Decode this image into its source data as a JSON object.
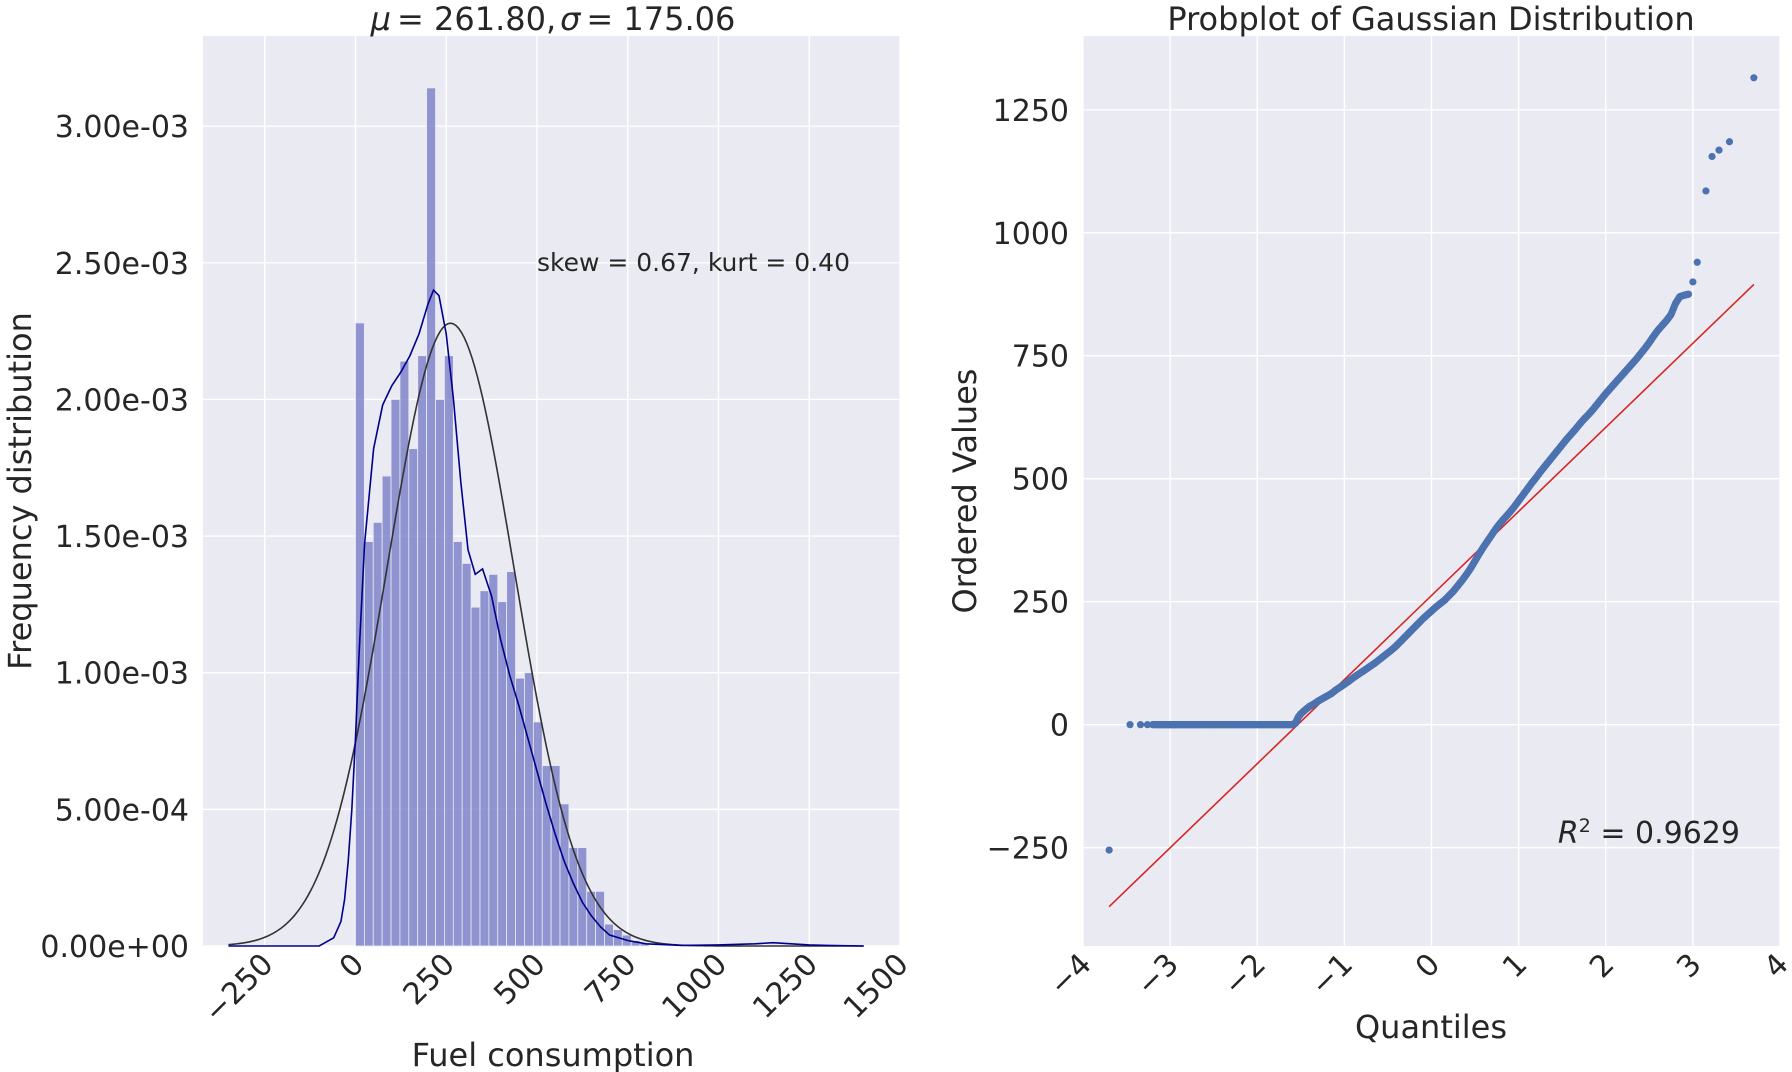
{
  "chart_data": [
    {
      "type": "bar",
      "title": "μ = 261.80, σ = 175.06",
      "title_parts": {
        "mu_symbol": "μ",
        "mu_value": "= 261.80,",
        "sigma_symbol": "σ",
        "sigma_value": "= 175.06"
      },
      "xlabel": "Fuel consumption",
      "ylabel": "Frequency distribution",
      "xlim": [
        -420,
        1500
      ],
      "ylim": [
        0,
        0.00333
      ],
      "x_tick_values": [
        -250,
        0,
        250,
        500,
        750,
        1000,
        1250,
        1500
      ],
      "x_tick_labels": [
        "−250",
        "0",
        "250",
        "500",
        "750",
        "1000",
        "1250",
        "1500"
      ],
      "y_tick_values": [
        0,
        0.0005,
        0.001,
        0.0015,
        0.002,
        0.0025,
        0.003
      ],
      "y_tick_labels": [
        "0.00e+00",
        "5.00e-04",
        "1.00e-03",
        "1.50e-03",
        "2.00e-03",
        "2.50e-03",
        "3.00e-03"
      ],
      "grid": true,
      "bin_start": 0,
      "bin_width": 24.5,
      "bar_color": "#7075c4",
      "values": [
        0.00228,
        0.00148,
        0.00155,
        0.00172,
        0.002,
        0.00214,
        0.00182,
        0.00216,
        0.00314,
        0.002,
        0.00216,
        0.00148,
        0.0014,
        0.00124,
        0.0013,
        0.00136,
        0.00126,
        0.00137,
        0.00098,
        0.001,
        0.00082,
        0.00066,
        0.00066,
        0.00052,
        0.00036,
        0.00036,
        0.0002,
        0.0002,
        8e-05,
        6e-05,
        4e-05,
        2e-05,
        1e-05
      ],
      "kde": {
        "name": "kde",
        "color": "#00008b",
        "x": [
          -350,
          -200,
          -100,
          -60,
          -40,
          -30,
          -20,
          -10,
          0,
          10,
          25,
          50,
          75,
          100,
          125,
          150,
          175,
          200,
          215,
          230,
          250,
          270,
          290,
          310,
          330,
          350,
          375,
          400,
          425,
          450,
          475,
          500,
          525,
          550,
          575,
          600,
          625,
          650,
          675,
          700,
          750,
          800,
          900,
          1000,
          1100,
          1150,
          1200,
          1250,
          1300,
          1400
        ],
        "y": [
          0,
          0,
          0,
          3e-05,
          9e-05,
          0.00017,
          0.00031,
          0.0005,
          0.00076,
          0.00107,
          0.00147,
          0.00182,
          0.00198,
          0.00205,
          0.0021,
          0.00216,
          0.00224,
          0.00235,
          0.0024,
          0.00238,
          0.00224,
          0.002,
          0.0017,
          0.00145,
          0.00136,
          0.00138,
          0.00128,
          0.00112,
          0.00099,
          0.00088,
          0.00076,
          0.00064,
          0.00052,
          0.00041,
          0.00031,
          0.00023,
          0.00016,
          0.00011,
          7e-05,
          4e-05,
          2e-05,
          8e-06,
          2e-06,
          4e-06,
          8e-06,
          1.2e-05,
          8e-06,
          4e-06,
          2e-06,
          0
        ]
      },
      "normal_fit": {
        "name": "normal fit",
        "color": "#333333",
        "mu": 261.8,
        "sigma": 175.06,
        "x_range": [
          -350,
          1400
        ]
      },
      "annotation": {
        "prefix": "skew",
        "skew_part": " = 0.67, ",
        "kurt_word": "kurt",
        "kurt_part": " = 0.40",
        "x": 500,
        "y": 0.0025
      }
    },
    {
      "type": "scatter",
      "title": "Probplot of Gaussian Distribution",
      "xlabel": "Quantiles",
      "ylabel": "Ordered Values",
      "xlim": [
        -4.0,
        4.0
      ],
      "ylim": [
        -450,
        1400
      ],
      "x_tick_values": [
        -4,
        -3,
        -2,
        -1,
        0,
        1,
        2,
        3,
        4
      ],
      "x_tick_labels": [
        "−4",
        "−3",
        "−2",
        "−1",
        "0",
        "1",
        "2",
        "3",
        "4"
      ],
      "y_tick_values": [
        -250,
        0,
        250,
        500,
        750,
        1000,
        1250
      ],
      "y_tick_labels": [
        "−250",
        "0",
        "250",
        "500",
        "750",
        "1000",
        "1250"
      ],
      "grid": true,
      "point_color": "#4c72b0",
      "fit_line": {
        "color": "#d62728",
        "x": [
          -3.7,
          3.7
        ],
        "y": [
          -370,
          895
        ]
      },
      "r_squared": {
        "symbol": "R",
        "superscript": "2",
        "value": " = 0.9629",
        "x": 1.45,
        "y": -220
      },
      "points": [
        [
          -3.7,
          -255
        ],
        [
          -3.46,
          0
        ],
        [
          -3.34,
          0
        ],
        [
          -3.26,
          0
        ],
        [
          -3.2,
          0
        ],
        [
          -3.15,
          0
        ],
        [
          -3.1,
          0
        ],
        [
          -3.06,
          0
        ],
        [
          -3.02,
          0
        ],
        [
          -2.98,
          0
        ],
        [
          -2.94,
          0
        ],
        [
          -2.9,
          0
        ],
        [
          -2.86,
          0
        ],
        [
          -2.82,
          0
        ],
        [
          -2.78,
          0
        ],
        [
          -2.74,
          0
        ],
        [
          -2.7,
          0
        ],
        [
          -2.65,
          0
        ],
        [
          -2.6,
          0
        ],
        [
          -2.55,
          0
        ],
        [
          -2.5,
          0
        ],
        [
          -2.45,
          0
        ],
        [
          -2.4,
          0
        ],
        [
          -2.35,
          0
        ],
        [
          -2.3,
          0
        ],
        [
          -2.25,
          0
        ],
        [
          -2.2,
          0
        ],
        [
          -2.15,
          0
        ],
        [
          -2.1,
          0
        ],
        [
          -2.05,
          0
        ],
        [
          -2.0,
          0
        ],
        [
          -1.95,
          0
        ],
        [
          -1.9,
          0
        ],
        [
          -1.85,
          0
        ],
        [
          -1.8,
          0
        ],
        [
          -1.75,
          0
        ],
        [
          -1.7,
          0
        ],
        [
          -1.65,
          0
        ],
        [
          -1.6,
          0
        ],
        [
          -1.56,
          3
        ],
        [
          -1.53,
          15
        ],
        [
          -1.5,
          22
        ],
        [
          -1.45,
          30
        ],
        [
          -1.4,
          37
        ],
        [
          -1.35,
          42
        ],
        [
          -1.3,
          48
        ],
        [
          -1.25,
          53
        ],
        [
          -1.2,
          58
        ],
        [
          -1.15,
          63
        ],
        [
          -1.1,
          70
        ],
        [
          -1.05,
          76
        ],
        [
          -1.0,
          82
        ],
        [
          -0.95,
          88
        ],
        [
          -0.9,
          95
        ],
        [
          -0.85,
          101
        ],
        [
          -0.8,
          107
        ],
        [
          -0.75,
          113
        ],
        [
          -0.7,
          119
        ],
        [
          -0.65,
          125
        ],
        [
          -0.6,
          132
        ],
        [
          -0.55,
          139
        ],
        [
          -0.5,
          146
        ],
        [
          -0.45,
          153
        ],
        [
          -0.4,
          161
        ],
        [
          -0.35,
          170
        ],
        [
          -0.3,
          179
        ],
        [
          -0.25,
          188
        ],
        [
          -0.2,
          197
        ],
        [
          -0.15,
          206
        ],
        [
          -0.1,
          215
        ],
        [
          -0.05,
          223
        ],
        [
          0.0,
          231
        ],
        [
          0.05,
          239
        ],
        [
          0.1,
          246
        ],
        [
          0.15,
          253
        ],
        [
          0.2,
          262
        ],
        [
          0.25,
          271
        ],
        [
          0.3,
          282
        ],
        [
          0.35,
          293
        ],
        [
          0.4,
          305
        ],
        [
          0.45,
          318
        ],
        [
          0.5,
          333
        ],
        [
          0.55,
          348
        ],
        [
          0.6,
          362
        ],
        [
          0.65,
          375
        ],
        [
          0.7,
          388
        ],
        [
          0.75,
          401
        ],
        [
          0.8,
          412
        ],
        [
          0.85,
          422
        ],
        [
          0.9,
          432
        ],
        [
          0.95,
          443
        ],
        [
          1.0,
          455
        ],
        [
          1.05,
          467
        ],
        [
          1.1,
          479
        ],
        [
          1.15,
          491
        ],
        [
          1.2,
          502
        ],
        [
          1.25,
          514
        ],
        [
          1.3,
          525
        ],
        [
          1.35,
          536
        ],
        [
          1.4,
          547
        ],
        [
          1.45,
          558
        ],
        [
          1.5,
          569
        ],
        [
          1.55,
          580
        ],
        [
          1.6,
          590
        ],
        [
          1.65,
          600
        ],
        [
          1.7,
          611
        ],
        [
          1.75,
          621
        ],
        [
          1.8,
          630
        ],
        [
          1.85,
          640
        ],
        [
          1.9,
          651
        ],
        [
          1.95,
          662
        ],
        [
          2.0,
          673
        ],
        [
          2.05,
          683
        ],
        [
          2.1,
          693
        ],
        [
          2.15,
          703
        ],
        [
          2.2,
          713
        ],
        [
          2.25,
          723
        ],
        [
          2.3,
          733
        ],
        [
          2.35,
          743
        ],
        [
          2.4,
          754
        ],
        [
          2.45,
          765
        ],
        [
          2.5,
          777
        ],
        [
          2.55,
          790
        ],
        [
          2.6,
          802
        ],
        [
          2.65,
          812
        ],
        [
          2.7,
          822
        ],
        [
          2.75,
          834
        ],
        [
          2.8,
          856
        ],
        [
          2.85,
          870
        ],
        [
          2.9,
          873
        ],
        [
          2.95,
          875
        ],
        [
          3.0,
          900
        ],
        [
          3.05,
          940
        ],
        [
          3.15,
          1085
        ],
        [
          3.22,
          1155
        ],
        [
          3.3,
          1168
        ],
        [
          3.42,
          1185
        ],
        [
          3.7,
          1315
        ]
      ]
    }
  ]
}
